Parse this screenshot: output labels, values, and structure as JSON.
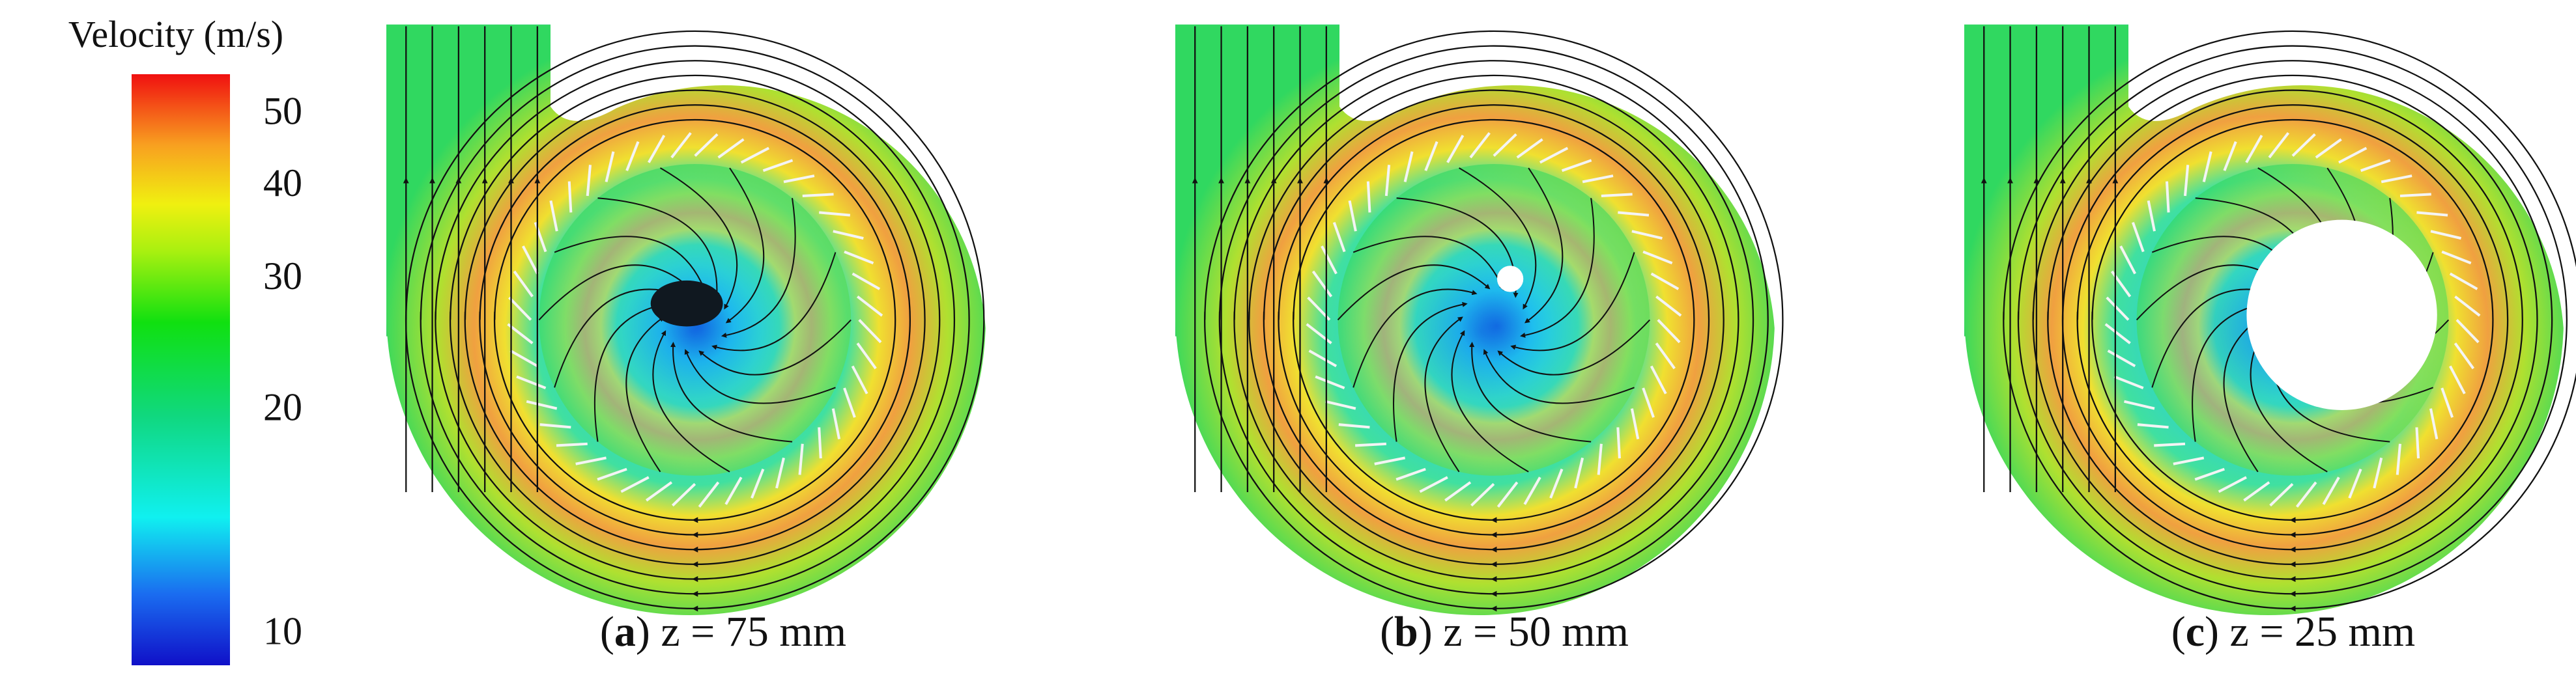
{
  "colorbar": {
    "title": "Velocity (m/s)",
    "ylim": [
      9,
      56
    ],
    "log": true,
    "yticks": [
      10,
      20,
      30,
      40,
      50
    ]
  },
  "panels": [
    {
      "open": "(",
      "letter": "a",
      "rest": ") z = 75 mm"
    },
    {
      "open": "(",
      "letter": "b",
      "rest": ") z = 50 mm"
    },
    {
      "open": "(",
      "letter": "c",
      "rest": ") z = 25 mm"
    }
  ]
}
